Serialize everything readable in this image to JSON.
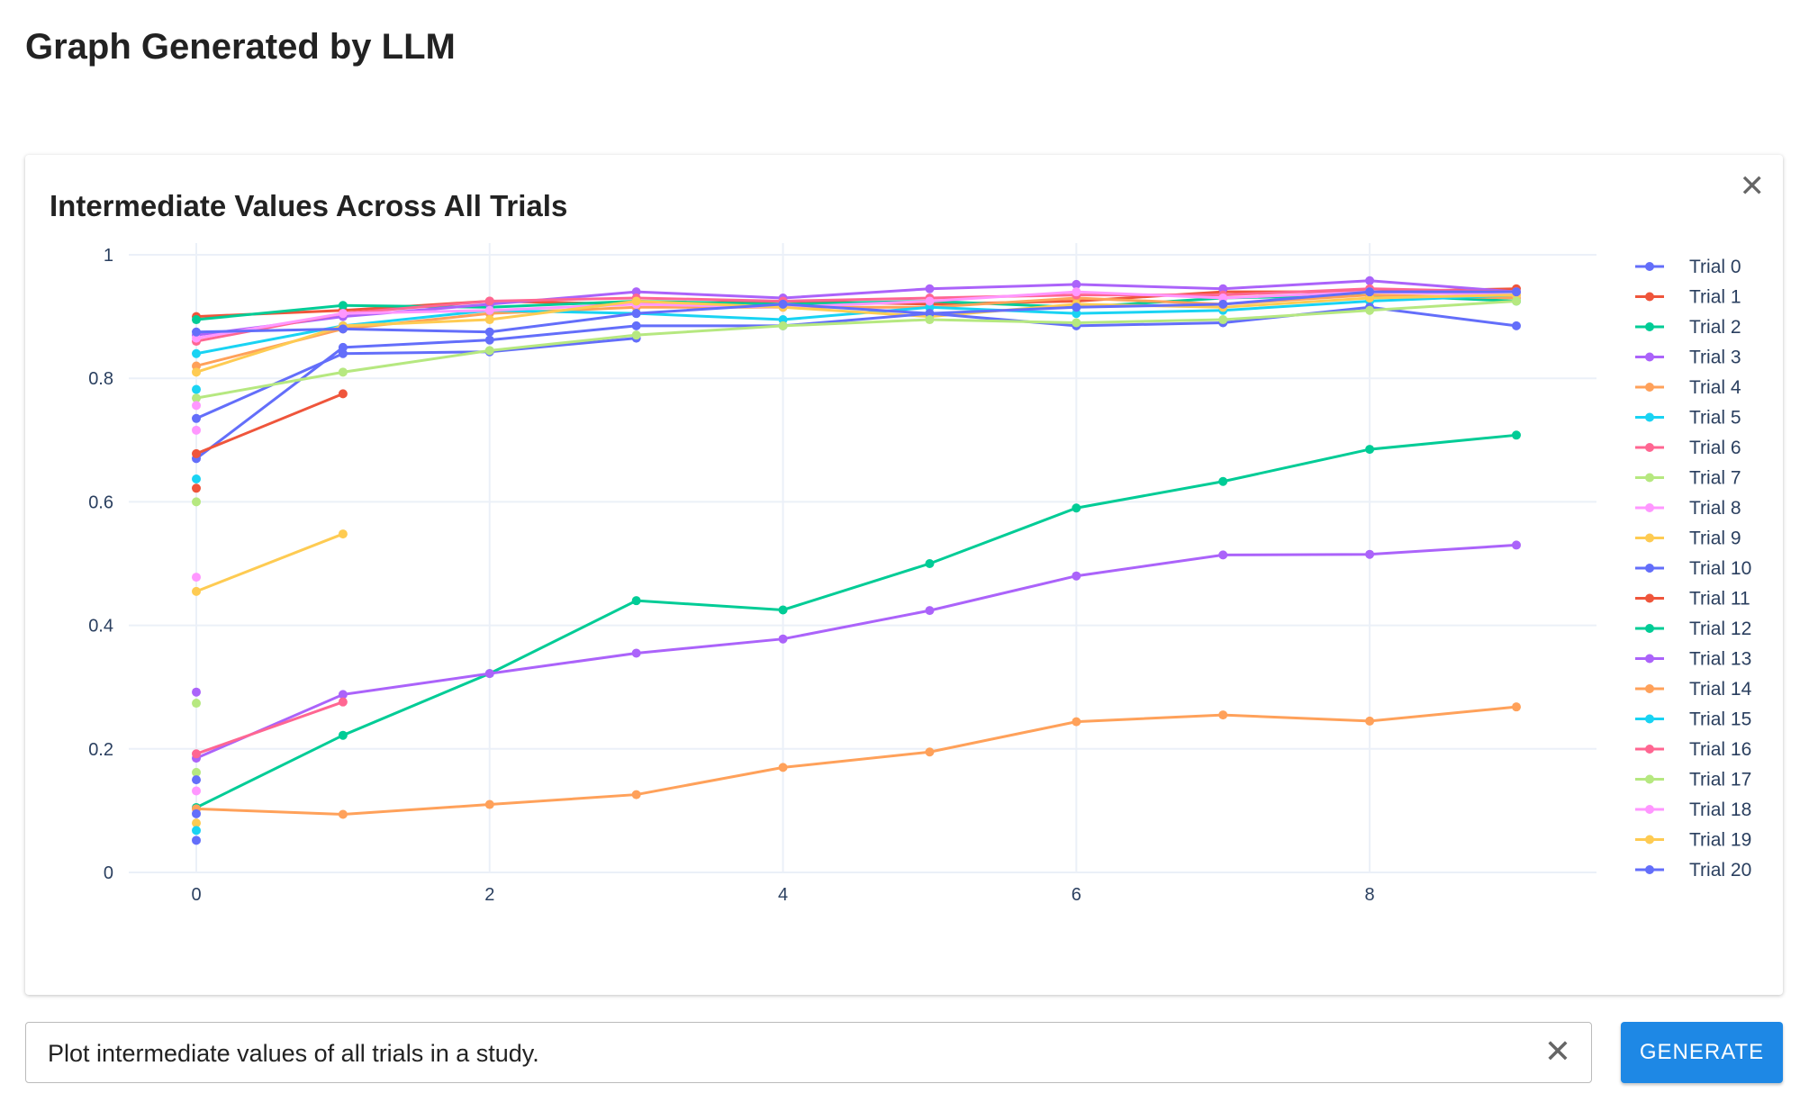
{
  "page": {
    "title": "Graph Generated by LLM"
  },
  "prompt": {
    "value": "Plot intermediate values of all trials in a study.",
    "clear_icon": "close-icon"
  },
  "generate_label": "GENERATE",
  "chart_close_icon": "close-icon",
  "chart_data": {
    "type": "line",
    "title": "Intermediate Values Across All Trials",
    "xlabel": "",
    "ylabel": "",
    "xlim": [
      -0.6,
      9.55
    ],
    "ylim": [
      0,
      1
    ],
    "xticks": [
      0,
      2,
      4,
      6,
      8
    ],
    "yticks": [
      0,
      0.2,
      0.4,
      0.6,
      0.8,
      1
    ],
    "ytick_labels": [
      "0",
      "0.2",
      "0.4",
      "0.6",
      "0.8",
      "1"
    ],
    "grid": true,
    "legend_position": "right",
    "legend": [
      {
        "name": "Trial 0",
        "color": "#636efa"
      },
      {
        "name": "Trial 1",
        "color": "#ef553b"
      },
      {
        "name": "Trial 2",
        "color": "#00cc96"
      },
      {
        "name": "Trial 3",
        "color": "#ab63fa"
      },
      {
        "name": "Trial 4",
        "color": "#ffa15a"
      },
      {
        "name": "Trial 5",
        "color": "#19d3f3"
      },
      {
        "name": "Trial 6",
        "color": "#ff6692"
      },
      {
        "name": "Trial 7",
        "color": "#b6e880"
      },
      {
        "name": "Trial 8",
        "color": "#ff97ff"
      },
      {
        "name": "Trial 9",
        "color": "#fecb52"
      },
      {
        "name": "Trial 10",
        "color": "#636efa"
      },
      {
        "name": "Trial 11",
        "color": "#ef553b"
      },
      {
        "name": "Trial 12",
        "color": "#00cc96"
      },
      {
        "name": "Trial 13",
        "color": "#ab63fa"
      },
      {
        "name": "Trial 14",
        "color": "#ffa15a"
      },
      {
        "name": "Trial 15",
        "color": "#19d3f3"
      },
      {
        "name": "Trial 16",
        "color": "#ff6692"
      },
      {
        "name": "Trial 17",
        "color": "#b6e880"
      },
      {
        "name": "Trial 18",
        "color": "#ff97ff"
      },
      {
        "name": "Trial 19",
        "color": "#fecb52"
      },
      {
        "name": "Trial 20",
        "color": "#636efa"
      }
    ],
    "series": [
      {
        "color": "#ef553b",
        "x": [
          0,
          1,
          2,
          3,
          4,
          5,
          6,
          7,
          8,
          9
        ],
        "y": [
          0.9,
          0.91,
          0.925,
          0.92,
          0.925,
          0.92,
          0.925,
          0.94,
          0.94,
          0.945
        ]
      },
      {
        "color": "#00cc96",
        "x": [
          0,
          1,
          2,
          3,
          4,
          5,
          6,
          7,
          8,
          9
        ],
        "y": [
          0.895,
          0.918,
          0.915,
          0.925,
          0.92,
          0.925,
          0.915,
          0.93,
          0.935,
          0.925
        ]
      },
      {
        "color": "#ab63fa",
        "x": [
          0,
          1,
          2,
          3,
          4,
          5,
          6,
          7,
          8,
          9
        ],
        "y": [
          0.87,
          0.9,
          0.92,
          0.94,
          0.93,
          0.945,
          0.952,
          0.945,
          0.958,
          0.94
        ]
      },
      {
        "color": "#ffa15a",
        "x": [
          0,
          1,
          2,
          3,
          4,
          5,
          6,
          7,
          8,
          9
        ],
        "y": [
          0.82,
          0.88,
          0.905,
          0.915,
          0.915,
          0.915,
          0.93,
          0.92,
          0.935,
          0.93
        ]
      },
      {
        "color": "#19d3f3",
        "x": [
          0,
          1,
          2,
          3,
          4,
          5,
          6,
          7,
          8,
          9
        ],
        "y": [
          0.84,
          0.885,
          0.91,
          0.905,
          0.895,
          0.915,
          0.905,
          0.91,
          0.925,
          0.935
        ]
      },
      {
        "color": "#ff6692",
        "x": [
          0,
          1,
          2,
          3,
          4,
          5,
          6,
          7,
          8,
          9
        ],
        "y": [
          0.86,
          0.905,
          0.925,
          0.93,
          0.925,
          0.93,
          0.935,
          0.935,
          0.945,
          0.94
        ]
      },
      {
        "color": "#ff97ff",
        "x": [
          0,
          1,
          2,
          3,
          4,
          5,
          6,
          7,
          8,
          9
        ],
        "y": [
          0.865,
          0.905,
          0.91,
          0.92,
          0.915,
          0.925,
          0.94,
          0.93,
          0.94,
          0.935
        ]
      },
      {
        "color": "#fecb52",
        "x": [
          0,
          1,
          2,
          3,
          4,
          5,
          6,
          7,
          8,
          9
        ],
        "y": [
          0.81,
          0.885,
          0.895,
          0.925,
          0.915,
          0.9,
          0.92,
          0.915,
          0.93,
          0.935
        ]
      },
      {
        "color": "#636efa",
        "x": [
          0,
          1,
          2,
          3,
          4,
          5,
          6,
          7,
          8,
          9
        ],
        "y": [
          0.875,
          0.88,
          0.875,
          0.905,
          0.92,
          0.905,
          0.915,
          0.92,
          0.94,
          0.94
        ]
      },
      {
        "color": "#636efa",
        "x": [
          0,
          1,
          2,
          3,
          4,
          5,
          6,
          7,
          8,
          9
        ],
        "y": [
          0.67,
          0.85,
          0.862,
          0.885,
          0.885,
          0.905,
          0.885,
          0.89,
          0.915,
          0.885
        ]
      },
      {
        "color": "#636efa",
        "x": [
          0,
          1,
          2,
          3
        ],
        "y": [
          0.735,
          0.84,
          0.843,
          0.865
        ]
      },
      {
        "color": "#b6e880",
        "x": [
          0,
          1,
          2,
          3,
          4,
          5,
          6,
          7,
          8,
          9
        ],
        "y": [
          0.768,
          0.81,
          0.845,
          0.87,
          0.885,
          0.895,
          0.89,
          0.895,
          0.91,
          0.925
        ]
      },
      {
        "color": "#ef553b",
        "x": [
          0,
          1
        ],
        "y": [
          0.678,
          0.775
        ]
      },
      {
        "color": "#fecb52",
        "x": [
          0,
          1
        ],
        "y": [
          0.455,
          0.548
        ]
      },
      {
        "color": "#00cc96",
        "x": [
          0,
          1,
          2,
          3,
          4,
          5,
          6,
          7,
          8,
          9
        ],
        "y": [
          0.105,
          0.222,
          0.322,
          0.44,
          0.425,
          0.5,
          0.59,
          0.633,
          0.685,
          0.708
        ]
      },
      {
        "color": "#ab63fa",
        "x": [
          0,
          1,
          2,
          3,
          4,
          5,
          6,
          7,
          8,
          9
        ],
        "y": [
          0.185,
          0.288,
          0.322,
          0.355,
          0.378,
          0.424,
          0.48,
          0.514,
          0.515,
          0.53
        ]
      },
      {
        "color": "#ff6692",
        "x": [
          0,
          1
        ],
        "y": [
          0.192,
          0.276
        ]
      },
      {
        "color": "#ffa15a",
        "x": [
          0,
          1,
          2,
          3,
          4,
          5,
          6,
          7,
          8,
          9
        ],
        "y": [
          0.103,
          0.094,
          0.11,
          0.126,
          0.17,
          0.195,
          0.244,
          0.255,
          0.245,
          0.268
        ]
      },
      {
        "color": "#19d3f3",
        "x": [
          0
        ],
        "y": [
          0.637
        ]
      },
      {
        "color": "#ef553b",
        "x": [
          0
        ],
        "y": [
          0.622
        ]
      },
      {
        "color": "#b6e880",
        "x": [
          0
        ],
        "y": [
          0.6
        ]
      },
      {
        "color": "#ff97ff",
        "x": [
          0
        ],
        "y": [
          0.716
        ]
      },
      {
        "color": "#ff97ff",
        "x": [
          0
        ],
        "y": [
          0.756
        ]
      },
      {
        "color": "#19d3f3",
        "x": [
          0
        ],
        "y": [
          0.782
        ]
      },
      {
        "color": "#ff97ff",
        "x": [
          0
        ],
        "y": [
          0.478
        ]
      },
      {
        "color": "#ab63fa",
        "x": [
          0
        ],
        "y": [
          0.292
        ]
      },
      {
        "color": "#b6e880",
        "x": [
          0
        ],
        "y": [
          0.274
        ]
      },
      {
        "color": "#b6e880",
        "x": [
          0
        ],
        "y": [
          0.162
        ]
      },
      {
        "color": "#636efa",
        "x": [
          0
        ],
        "y": [
          0.15
        ]
      },
      {
        "color": "#ff97ff",
        "x": [
          0
        ],
        "y": [
          0.132
        ]
      },
      {
        "color": "#636efa",
        "x": [
          0
        ],
        "y": [
          0.095
        ]
      },
      {
        "color": "#fecb52",
        "x": [
          0
        ],
        "y": [
          0.08
        ]
      },
      {
        "color": "#19d3f3",
        "x": [
          0
        ],
        "y": [
          0.068
        ]
      },
      {
        "color": "#636efa",
        "x": [
          0
        ],
        "y": [
          0.052
        ]
      }
    ]
  }
}
